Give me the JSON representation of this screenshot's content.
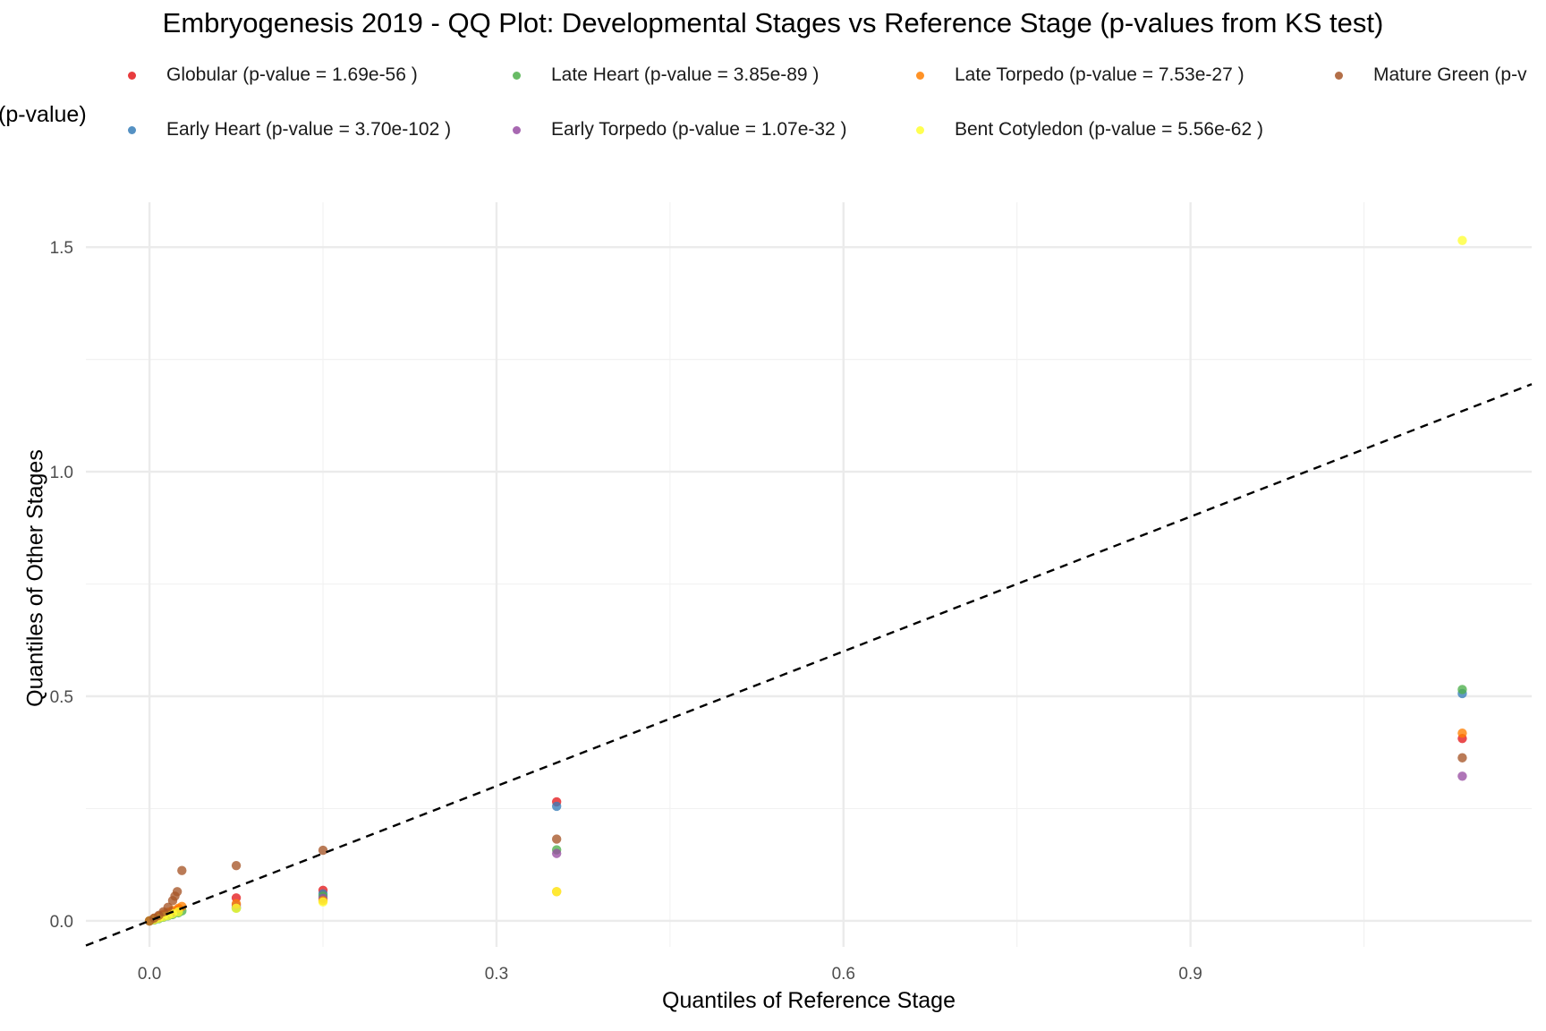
{
  "chart_data": {
    "type": "scatter",
    "title": "Embryogenesis 2019 - QQ Plot: Developmental Stages vs Reference Stage (p-values from KS test)",
    "xlabel": "Quantiles of Reference Stage",
    "ylabel": "Quantiles of Other Stages",
    "legend_title": "(p-value)",
    "legend_position": "top",
    "grid": true,
    "xlim": [
      -0.055,
      1.195
    ],
    "ylim": [
      -0.058,
      1.6
    ],
    "x_ticks": [
      "0.0",
      "0.3",
      "0.6",
      "0.9"
    ],
    "y_ticks": [
      "0.0",
      "0.5",
      "1.0",
      "1.5"
    ],
    "reference_line": {
      "style": "dashed",
      "slope": 1,
      "intercept": 0,
      "color": "#000000"
    },
    "series": [
      {
        "name": "Globular (p-value =  1.69e-56 )",
        "color": "#E41A1C",
        "points": [
          [
            0,
            0
          ],
          [
            0.004,
            0.004
          ],
          [
            0.008,
            0.008
          ],
          [
            0.012,
            0.012
          ],
          [
            0.016,
            0.016
          ],
          [
            0.02,
            0.02
          ],
          [
            0.025,
            0.025
          ],
          [
            0.075,
            0.051
          ],
          [
            0.15,
            0.068
          ],
          [
            0.352,
            0.265
          ],
          [
            1.135,
            0.406
          ]
        ]
      },
      {
        "name": "Early Heart (p-value = 3.70e-102 )",
        "color": "#377EB8",
        "points": [
          [
            0,
            0
          ],
          [
            0.004,
            0.003
          ],
          [
            0.008,
            0.006
          ],
          [
            0.012,
            0.01
          ],
          [
            0.016,
            0.013
          ],
          [
            0.02,
            0.016
          ],
          [
            0.025,
            0.02
          ],
          [
            0.075,
            0.03
          ],
          [
            0.15,
            0.06
          ],
          [
            0.352,
            0.255
          ],
          [
            1.135,
            0.506
          ]
        ]
      },
      {
        "name": "Late Heart (p-value =  3.85e-89 )",
        "color": "#4DAF4A",
        "points": [
          [
            0,
            0
          ],
          [
            0.004,
            0.002
          ],
          [
            0.008,
            0.005
          ],
          [
            0.012,
            0.008
          ],
          [
            0.016,
            0.011
          ],
          [
            0.02,
            0.014
          ],
          [
            0.025,
            0.018
          ],
          [
            0.028,
            0.022
          ],
          [
            0.075,
            0.028
          ],
          [
            0.15,
            0.055
          ],
          [
            0.352,
            0.158
          ],
          [
            1.135,
            0.515
          ]
        ]
      },
      {
        "name": "Early Torpedo (p-value =  1.07e-32 )",
        "color": "#984EA3",
        "points": [
          [
            0,
            0
          ],
          [
            0.004,
            0.004
          ],
          [
            0.008,
            0.008
          ],
          [
            0.012,
            0.012
          ],
          [
            0.016,
            0.016
          ],
          [
            0.02,
            0.02
          ],
          [
            0.075,
            0.035
          ],
          [
            0.15,
            0.05
          ],
          [
            0.352,
            0.15
          ],
          [
            1.135,
            0.322
          ]
        ]
      },
      {
        "name": "Late Torpedo (p-value =  7.53e-27 )",
        "color": "#FF7F00",
        "points": [
          [
            0,
            0
          ],
          [
            0.004,
            0.005
          ],
          [
            0.008,
            0.01
          ],
          [
            0.012,
            0.015
          ],
          [
            0.016,
            0.019
          ],
          [
            0.02,
            0.023
          ],
          [
            0.025,
            0.028
          ],
          [
            0.028,
            0.032
          ],
          [
            0.075,
            0.038
          ],
          [
            0.15,
            0.045
          ],
          [
            0.352,
            0.065
          ],
          [
            1.135,
            0.418
          ]
        ]
      },
      {
        "name": "Bent Cotyledon (p-value =  5.56e-62 )",
        "color": "#FFFF33",
        "points": [
          [
            0,
            0
          ],
          [
            0.004,
            0.003
          ],
          [
            0.008,
            0.006
          ],
          [
            0.012,
            0.009
          ],
          [
            0.016,
            0.012
          ],
          [
            0.02,
            0.016
          ],
          [
            0.025,
            0.02
          ],
          [
            0.075,
            0.028
          ],
          [
            0.15,
            0.042
          ],
          [
            0.352,
            0.065
          ],
          [
            1.135,
            1.515
          ]
        ]
      },
      {
        "name": "Mature Green (p-v",
        "color": "#A65628",
        "points": [
          [
            0,
            0
          ],
          [
            0.004,
            0.006
          ],
          [
            0.008,
            0.012
          ],
          [
            0.012,
            0.02
          ],
          [
            0.016,
            0.03
          ],
          [
            0.02,
            0.045
          ],
          [
            0.022,
            0.055
          ],
          [
            0.024,
            0.065
          ],
          [
            0.028,
            0.112
          ],
          [
            0.075,
            0.123
          ],
          [
            0.15,
            0.157
          ],
          [
            0.352,
            0.182
          ],
          [
            1.135,
            0.363
          ]
        ]
      }
    ]
  }
}
